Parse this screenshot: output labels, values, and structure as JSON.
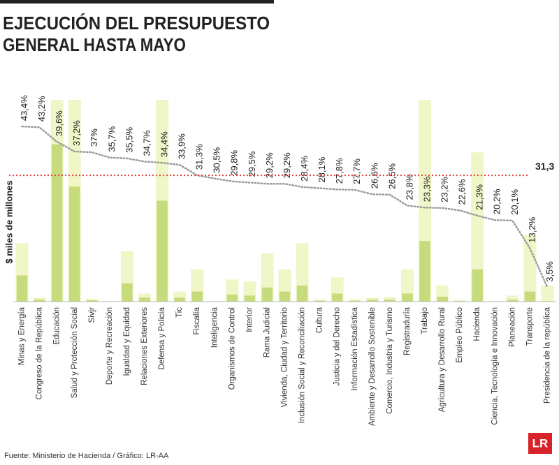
{
  "chart_data": {
    "type": "bar",
    "title_lines": [
      "EJECUCIÓN DEL PRESUPUESTO",
      "GENERAL HASTA MAYO"
    ],
    "ylabel": "$ miles de millones",
    "source": "Fuente: Ministerio de Hacienda / Gráfico: LR-AA",
    "logo": "LR",
    "categories": [
      "Minas y Energía",
      "Congreso de la República",
      "Educación",
      "Salud y Protección Social",
      "Sivjr",
      "Deporte y Recreación",
      "Igualdad y Equidad",
      "Relaciones Exteriores",
      "Defensa y Policía",
      "Tic",
      "Fiscalía",
      "Inteligencia",
      "Organismos de Control",
      "Interior",
      "Rama Judicial",
      "Vivienda, Ciudad y Territorio",
      "Inclusión Social y Reconciliación",
      "Cultura",
      "Justicia y del Derecho",
      "Información Estadística",
      "Ambiente y Desarrollo Sostenible",
      "Comercio, Industria y Turismo",
      "Registraduría",
      "Trabajo",
      "Agricultura y Desarrollo Rural",
      "Empleo Público",
      "Hacienda",
      "Ciencia, Tecnología e Innovación",
      "Planeación",
      "Transporte",
      "Presidencia de la república"
    ],
    "ylim": [
      0,
      100
    ],
    "y2lim": [
      0,
      50
    ],
    "series": [
      {
        "color": "#f1f6c8",
        "values": [
          29,
          2,
          100,
          100,
          1.4,
          0.3,
          25,
          4,
          100,
          5,
          16,
          0.3,
          11,
          10,
          24,
          16,
          29,
          1,
          12,
          1,
          2,
          2.4,
          16,
          100,
          8,
          0.7,
          74,
          0.3,
          3,
          33,
          8
        ]
      },
      {
        "color": "#c6db7c",
        "values": [
          13,
          1,
          78,
          57,
          0.7,
          0.2,
          9,
          2,
          50,
          2,
          5,
          0.2,
          3.5,
          3,
          7,
          5,
          8,
          0.5,
          4,
          0.5,
          1,
          1,
          4,
          30,
          2.4,
          0.3,
          16,
          0.2,
          1,
          5,
          0.3
        ]
      },
      {
        "type": "line",
        "axis": "y2",
        "color": "#9a9a9a",
        "values": [
          43.4,
          43.2,
          39.6,
          37.2,
          37,
          35.7,
          35.5,
          34.7,
          34.4,
          33.9,
          31.3,
          30.5,
          29.8,
          29.5,
          29.2,
          29.2,
          28.4,
          28.1,
          27.8,
          27.7,
          26.6,
          26.5,
          23.8,
          23.3,
          23.2,
          22.6,
          21.3,
          20.2,
          20.1,
          13.2,
          3.5
        ],
        "value_labels": [
          "43,4%",
          "43,2%",
          "39,6%",
          "37,2%",
          "37%",
          "35,7%",
          "35,5%",
          "34,7%",
          "34,4%",
          "33,9%",
          "31,3%",
          "30,5%",
          "29,8%",
          "29,5%",
          "29,2%",
          "29,2%",
          "28,4%",
          "28,1%",
          "27,8%",
          "27,7%",
          "26,6%",
          "26,5%",
          "23,8%",
          "23,3%",
          "23,2%",
          "22,6%",
          "21,3%",
          "20,2%",
          "20,1%",
          "13,2%",
          "3,5%"
        ]
      }
    ],
    "reference_line": {
      "value": 31.3,
      "label": "31,3",
      "color": "#e8403a",
      "axis": "y2"
    }
  }
}
